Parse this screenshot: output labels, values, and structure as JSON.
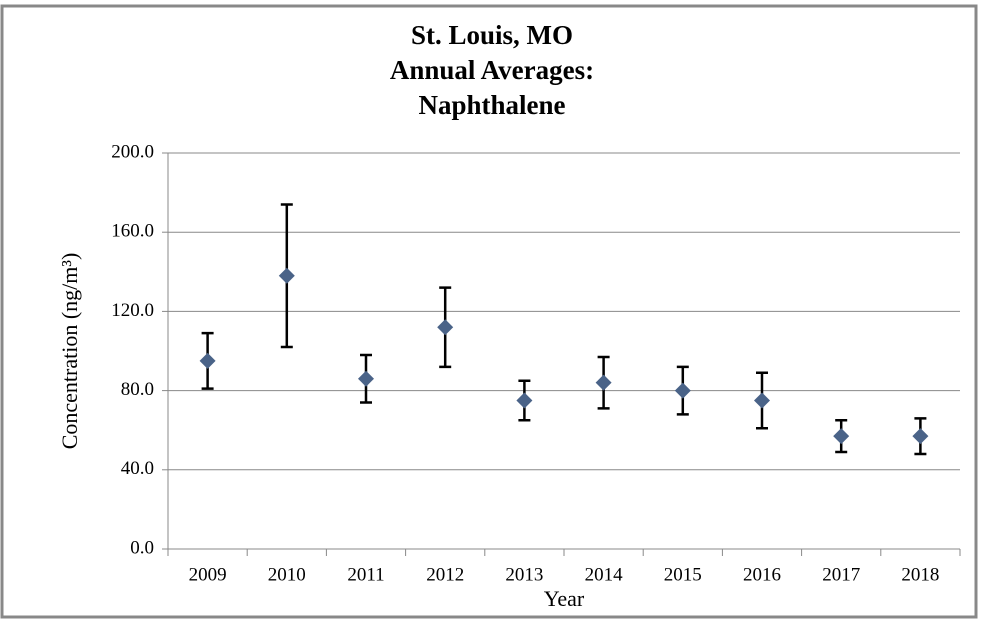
{
  "chart_data": {
    "type": "errorbar",
    "title": [
      "St. Louis, MO",
      "Annual Averages:",
      "Naphthalene"
    ],
    "x_label": "Year",
    "y_label": "Concentration (ng/m³)",
    "categories": [
      "2009",
      "2010",
      "2011",
      "2012",
      "2013",
      "2014",
      "2015",
      "2016",
      "2017",
      "2018"
    ],
    "values": [
      95,
      138,
      86,
      112,
      75,
      84,
      80,
      75,
      57,
      57
    ],
    "errors": [
      14,
      36,
      12,
      20,
      10,
      13,
      12,
      14,
      8,
      9
    ],
    "color": "#4a6388",
    "error_color": "#000000",
    "ylim": [
      0,
      200
    ],
    "yticks": [
      {
        "value": 0,
        "label": "0.0"
      },
      {
        "value": 40,
        "label": "40.0"
      },
      {
        "value": 80,
        "label": "80.0"
      },
      {
        "value": 120,
        "label": "120.0"
      },
      {
        "value": 160,
        "label": "160.0"
      },
      {
        "value": 200,
        "label": "200.0"
      }
    ],
    "grid": true
  }
}
